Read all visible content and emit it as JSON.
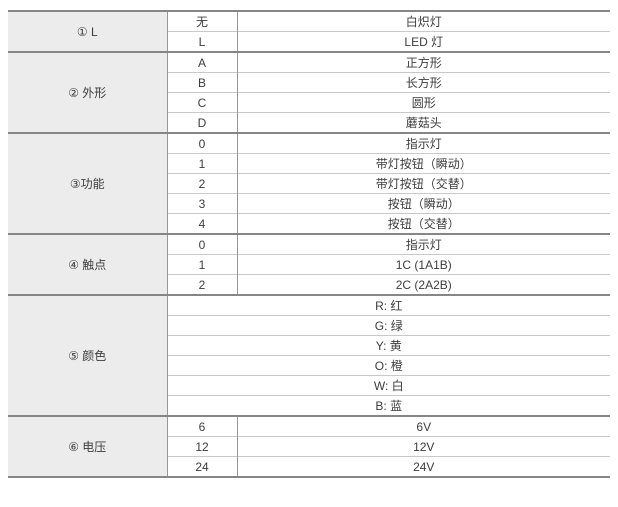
{
  "table": {
    "sections": [
      {
        "label": "① L",
        "rows": [
          {
            "code": "无",
            "desc": "白炽灯"
          },
          {
            "code": "L",
            "desc": "LED 灯"
          }
        ]
      },
      {
        "label": "② 外形",
        "rows": [
          {
            "code": "A",
            "desc": "正方形"
          },
          {
            "code": "B",
            "desc": "长方形"
          },
          {
            "code": "C",
            "desc": "圆形"
          },
          {
            "code": "D",
            "desc": "蘑菇头"
          }
        ]
      },
      {
        "label": "③功能",
        "rows": [
          {
            "code": "0",
            "desc": "指示灯"
          },
          {
            "code": "1",
            "desc": "带灯按钮（瞬动）"
          },
          {
            "code": "2",
            "desc": "带灯按钮（交替）"
          },
          {
            "code": "3",
            "desc": "按钮（瞬动）"
          },
          {
            "code": "4",
            "desc": "按钮（交替）"
          }
        ]
      },
      {
        "label": "④ 触点",
        "rows": [
          {
            "code": "0",
            "desc": "指示灯"
          },
          {
            "code": "1",
            "desc": "1C (1A1B)"
          },
          {
            "code": "2",
            "desc": "2C (2A2B)"
          }
        ]
      },
      {
        "label": "⑤ 颜色",
        "merged": true,
        "rows": [
          {
            "desc": "R: 红"
          },
          {
            "desc": "G: 绿"
          },
          {
            "desc": "Y: 黄"
          },
          {
            "desc": "O: 橙"
          },
          {
            "desc": "W: 白"
          },
          {
            "desc": "B: 蓝"
          }
        ]
      },
      {
        "label": "⑥ 电压",
        "rows": [
          {
            "code": "6",
            "desc": "6V"
          },
          {
            "code": "12",
            "desc": "12V"
          },
          {
            "code": "24",
            "desc": "24V"
          }
        ]
      }
    ]
  },
  "colors": {
    "label_background": "#ececec",
    "section_border": "#868686",
    "inner_row_border": "#c9c9c9",
    "column_border": "#979797",
    "text": "#3d3d3d",
    "page_background": "#ffffff"
  }
}
